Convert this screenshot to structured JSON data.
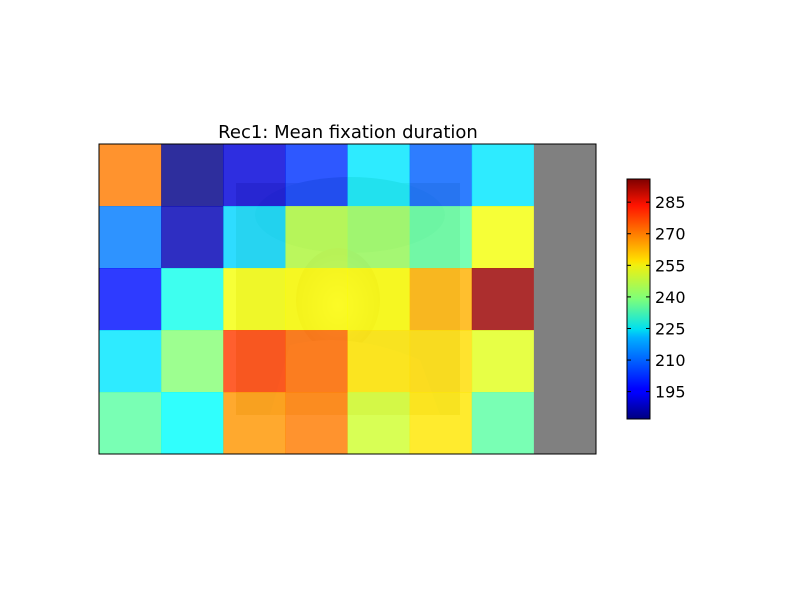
{
  "chart_data": {
    "type": "heatmap",
    "title": "Rec1: Mean fixation duration",
    "rows": 5,
    "cols": 8,
    "values": [
      [
        268,
        183,
        192,
        202,
        222,
        207,
        222,
        null
      ],
      [
        210,
        188,
        220,
        245,
        242,
        235,
        252,
        null
      ],
      [
        198,
        227,
        252,
        253,
        253,
        262,
        293,
        null
      ],
      [
        222,
        240,
        275,
        270,
        256,
        257,
        250,
        null
      ],
      [
        235,
        225,
        265,
        268,
        248,
        256,
        235,
        null
      ]
    ],
    "missing_color": "#808080",
    "colormap": "jet",
    "cell_alpha": 0.82,
    "vmin": 182,
    "vmax": 296,
    "colorbar_ticks": [
      195,
      210,
      225,
      240,
      255,
      270,
      285
    ],
    "background_image": "portrait-photo (girl in hat)",
    "axis_ticks_visible": false
  }
}
